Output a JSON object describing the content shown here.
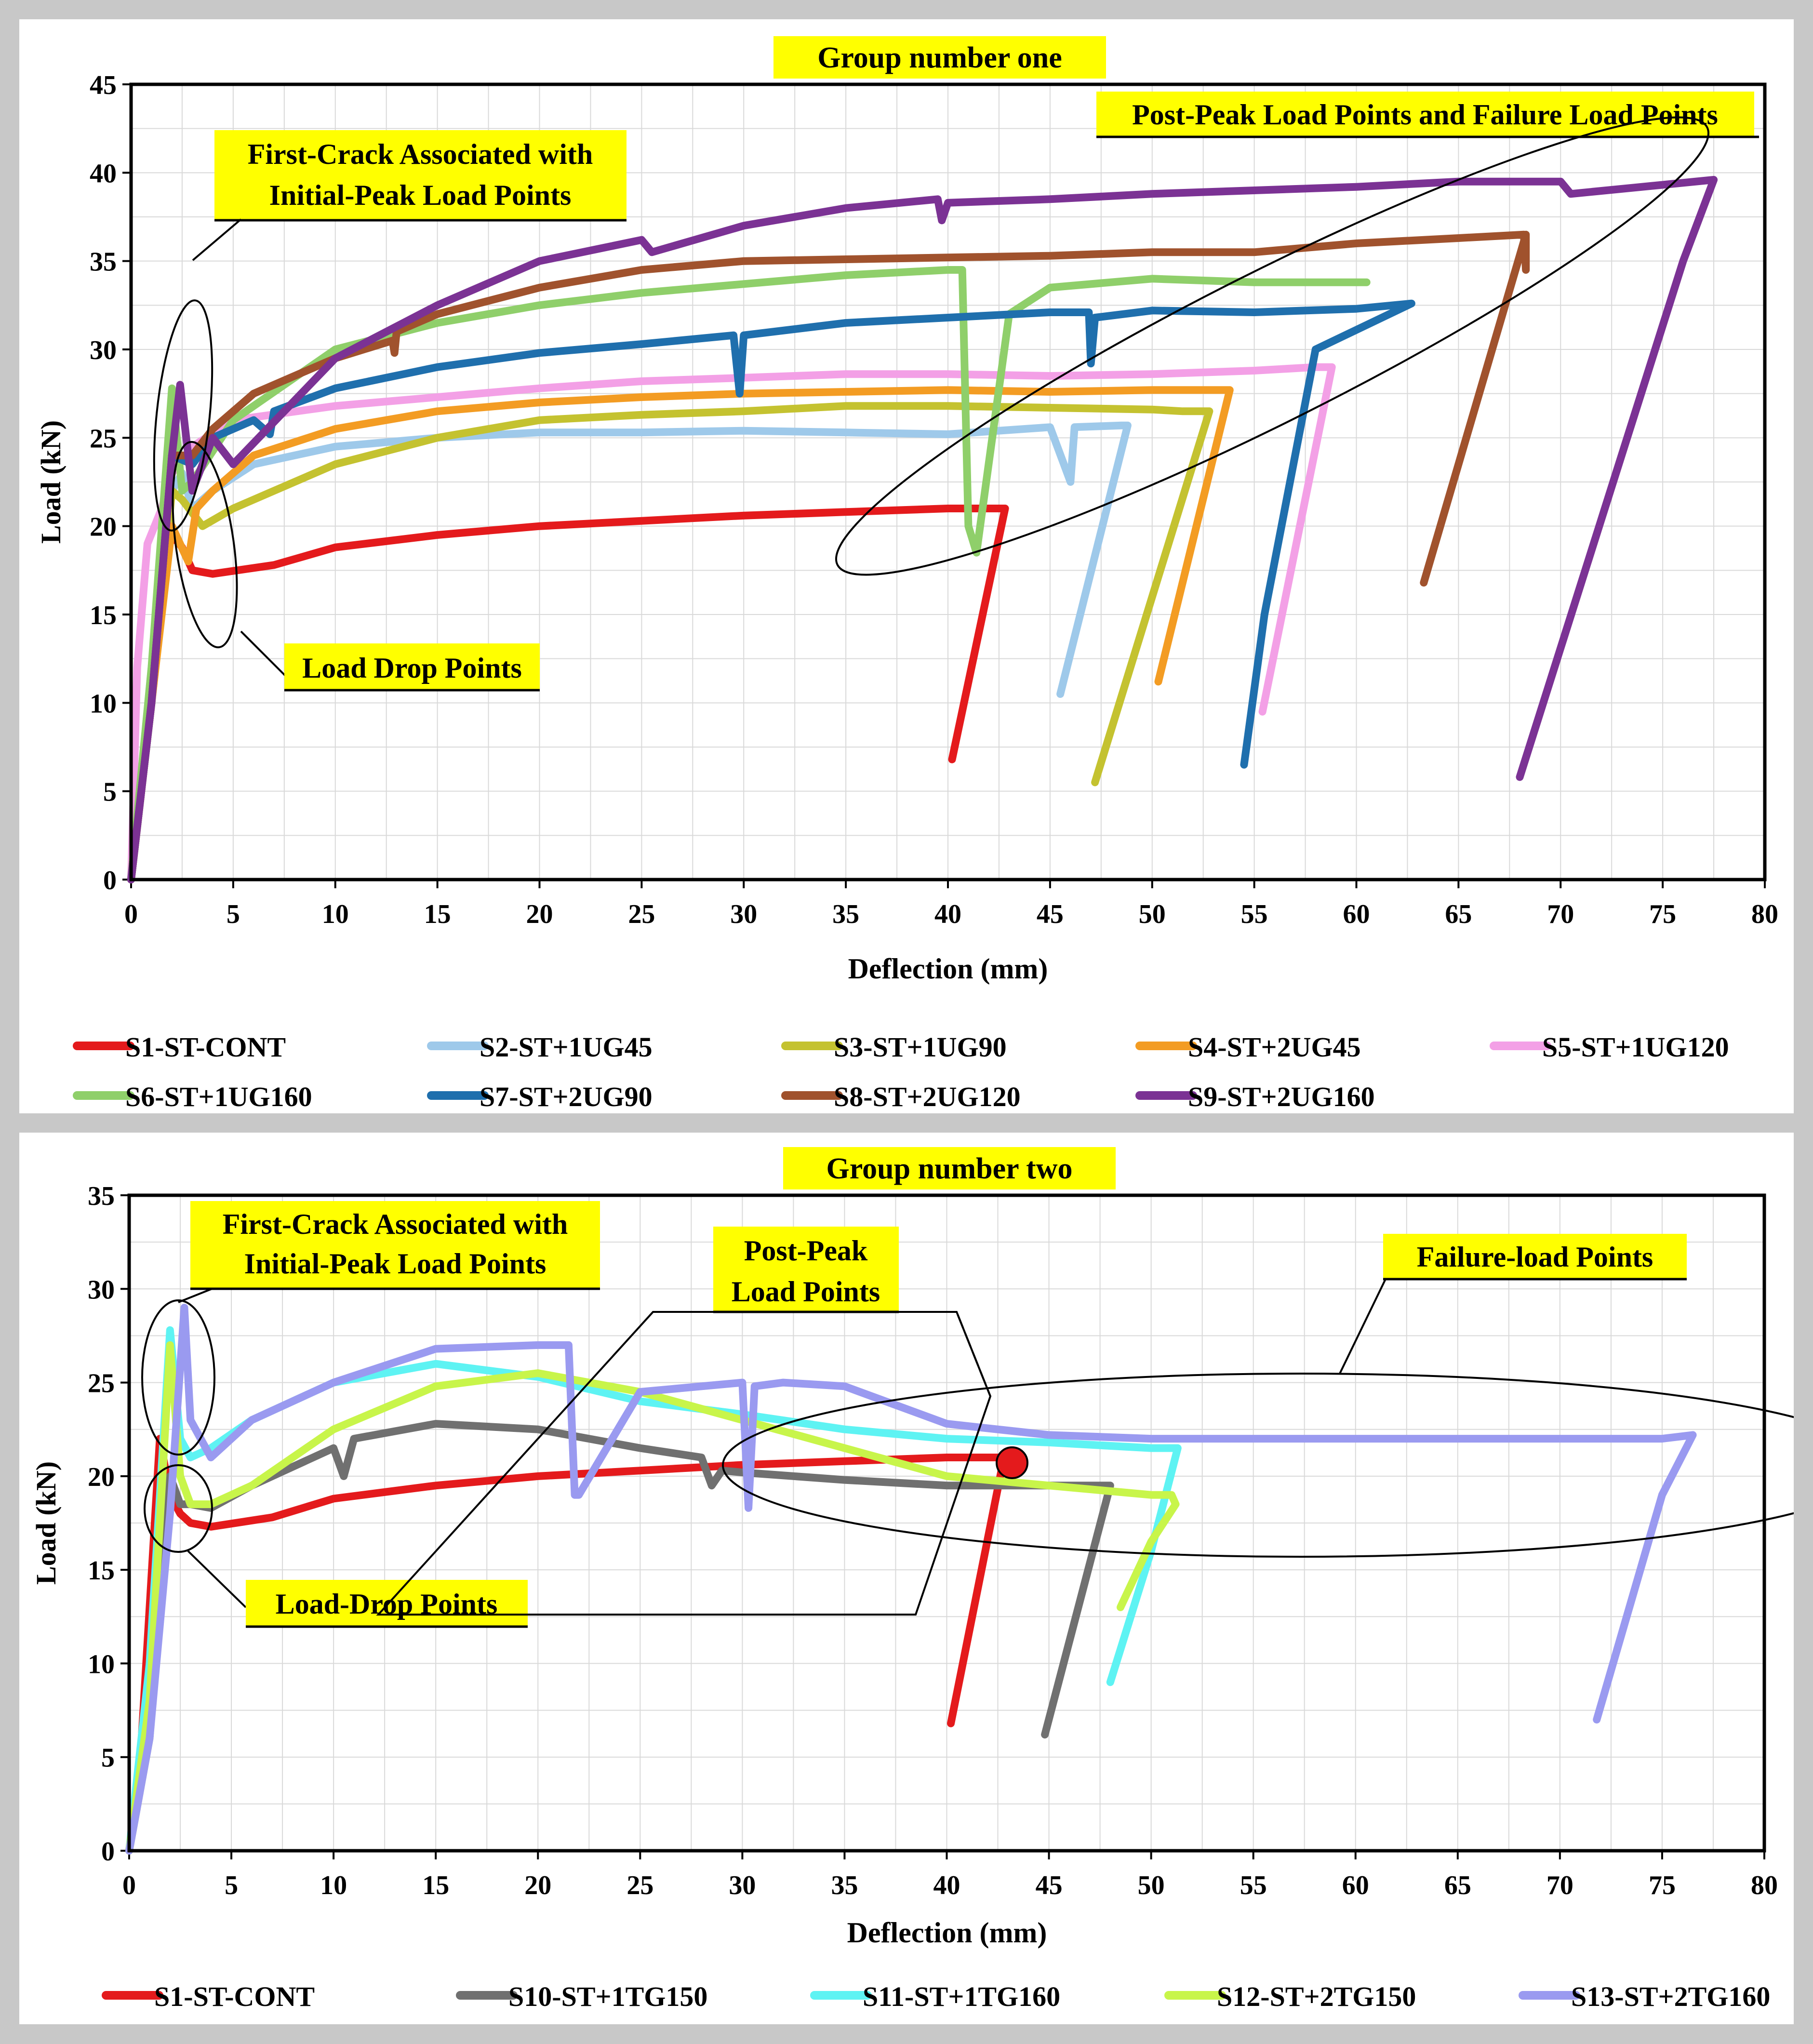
{
  "colors": {
    "S1": "#e41a1c",
    "S2": "#9ec9ea",
    "S3": "#c4c230",
    "S4": "#f39c23",
    "S5": "#f3a0e6",
    "S6": "#8fcf6a",
    "S7": "#1f6fad",
    "S8": "#a0522d",
    "S9": "#7b3294",
    "S10": "#707070",
    "S11": "#5ef3f3",
    "S12": "#c8f54a",
    "S13": "#9a9af0",
    "highlight": "#ffff00"
  },
  "chart_data": [
    {
      "type": "line",
      "title": "Group number one",
      "xlabel": "Deflection (mm)",
      "ylabel": "Load (kN)",
      "xlim": [
        0,
        80
      ],
      "ylim": [
        0,
        45
      ],
      "xticks": [
        "0",
        "5",
        "10",
        "15",
        "20",
        "25",
        "30",
        "35",
        "40",
        "45",
        "50",
        "55",
        "60",
        "65",
        "70",
        "75",
        "80"
      ],
      "yticks": [
        "0",
        "5",
        "10",
        "15",
        "20",
        "25",
        "30",
        "35",
        "40",
        "45"
      ],
      "grid": true,
      "legend_position": "bottom",
      "annotations": {
        "first_crack": [
          "First-Crack Associated with",
          "Initial-Peak Load Points"
        ],
        "post_peak_failure": "Post-Peak Load Points and Failure Load Points",
        "load_drop": "Load Drop Points"
      },
      "series": [
        {
          "name": "S1-ST-CONT",
          "color_key": "S1",
          "x": [
            0,
            1,
            1.5,
            2.0,
            2.5,
            3,
            4,
            7,
            10,
            15,
            20,
            25,
            30,
            35,
            40,
            42.6,
            42.8,
            40.2
          ],
          "y": [
            0,
            10,
            17,
            19.5,
            18.8,
            17.5,
            17.3,
            17.8,
            18.8,
            19.5,
            20,
            20.3,
            20.6,
            20.8,
            21,
            21,
            21,
            6.8
          ]
        },
        {
          "name": "S2-ST+1UG45",
          "color_key": "S2",
          "x": [
            0,
            1,
            2,
            2.5,
            3,
            4,
            6,
            10,
            15,
            20,
            25,
            30,
            35,
            40,
            45,
            46,
            46.2,
            48.5,
            48.8,
            45.5
          ],
          "y": [
            0,
            12,
            22,
            23,
            21,
            22,
            23.5,
            24.5,
            25,
            25.3,
            25.3,
            25.4,
            25.3,
            25.2,
            25.6,
            22.5,
            25.6,
            25.7,
            25.7,
            10.5
          ]
        },
        {
          "name": "S3-ST+1UG90",
          "color_key": "S3",
          "x": [
            0,
            1,
            2,
            2.5,
            3.5,
            5,
            7,
            10,
            15,
            20,
            25,
            30,
            35,
            40,
            45,
            50,
            51.5,
            52.5,
            52.8,
            47.2
          ],
          "y": [
            0,
            10,
            22,
            21.5,
            20,
            21,
            22,
            23.5,
            25,
            26,
            26.3,
            26.5,
            26.8,
            26.8,
            26.7,
            26.6,
            26.5,
            26.5,
            26.5,
            5.5
          ]
        },
        {
          "name": "S4-ST+2UG45",
          "color_key": "S4",
          "x": [
            0,
            1,
            2,
            2.8,
            3.2,
            4,
            6,
            10,
            15,
            20,
            25,
            30,
            35,
            40,
            45,
            50,
            53.5,
            53.8,
            50.3
          ],
          "y": [
            0,
            10,
            20,
            18,
            21,
            22,
            24,
            25.5,
            26.5,
            27,
            27.3,
            27.5,
            27.6,
            27.7,
            27.6,
            27.7,
            27.7,
            27.7,
            11.2
          ]
        },
        {
          "name": "S5-ST+1UG120",
          "color_key": "S5",
          "x": [
            0,
            0.3,
            0.8,
            1.5,
            2,
            3,
            5,
            10,
            15,
            20,
            25,
            30,
            35,
            40,
            45,
            50,
            55,
            58,
            58.8,
            55.4
          ],
          "y": [
            0,
            12,
            19,
            21,
            23,
            24.5,
            26,
            26.8,
            27.3,
            27.8,
            28.2,
            28.4,
            28.6,
            28.6,
            28.5,
            28.6,
            28.8,
            29,
            29,
            9.5
          ]
        },
        {
          "name": "S6-ST+1UG160",
          "color_key": "S6",
          "x": [
            0,
            1,
            2,
            2.5,
            3,
            5,
            10,
            15,
            20,
            25,
            30,
            35,
            40,
            40.7,
            41,
            41.4,
            43,
            45,
            50,
            55,
            58,
            60.5,
            57.3
          ],
          "y": [
            0,
            12,
            27.8,
            22,
            22.5,
            26,
            30,
            31.5,
            32.5,
            33.2,
            33.7,
            34.2,
            34.5,
            34.5,
            20,
            18.5,
            32,
            33.5,
            34,
            33.8,
            33.8,
            33.8,
            33.8
          ]
        },
        {
          "name": "S7-ST+2UG90",
          "color_key": "S7",
          "x": [
            0,
            1,
            2,
            3,
            4,
            6,
            6.8,
            7,
            10,
            15,
            20,
            25,
            29.5,
            29.8,
            30,
            35,
            40,
            45,
            46.9,
            47.0,
            47.2,
            50,
            55,
            60,
            62.7,
            58,
            55.5,
            54.5
          ],
          "y": [
            0,
            10,
            24,
            23.5,
            25,
            26,
            25.2,
            26.5,
            27.8,
            29,
            29.8,
            30.3,
            30.8,
            27.5,
            30.8,
            31.5,
            31.8,
            32.1,
            32.1,
            29.2,
            31.8,
            32.2,
            32.1,
            32.3,
            32.6,
            30,
            15,
            6.5
          ]
        },
        {
          "name": "S8-ST+2UG120",
          "color_key": "S8",
          "x": [
            0,
            1,
            2,
            3,
            4,
            6,
            10,
            12.8,
            12.9,
            13,
            15,
            20,
            25,
            30,
            35,
            40,
            45,
            50,
            55,
            60,
            65,
            68.2,
            68.3,
            68.3,
            63.3
          ],
          "y": [
            0,
            10,
            24,
            24,
            25.5,
            27.5,
            29.5,
            30.5,
            29.8,
            31,
            32,
            33.5,
            34.5,
            35,
            35.1,
            35.2,
            35.3,
            35.5,
            35.5,
            36,
            36.3,
            36.5,
            34.5,
            36.5,
            16.8
          ]
        },
        {
          "name": "S9-ST+2UG160",
          "color_key": "S9",
          "x": [
            0,
            1,
            2,
            2.4,
            3,
            4,
            5,
            10,
            15,
            20,
            25,
            25.5,
            30,
            35,
            39.5,
            39.7,
            40,
            45,
            50,
            55,
            60,
            65,
            70,
            70.5,
            77.5,
            76,
            68
          ],
          "y": [
            0,
            10,
            24,
            28,
            22,
            25,
            23.5,
            29.5,
            32.5,
            35,
            36.2,
            35.5,
            37,
            38,
            38.5,
            37.3,
            38.3,
            38.5,
            38.8,
            39,
            39.2,
            39.5,
            39.5,
            38.8,
            39.6,
            35,
            5.8
          ]
        }
      ]
    },
    {
      "type": "line",
      "title": "Group number two",
      "xlabel": "Deflection (mm)",
      "ylabel": "Load (kN)",
      "xlim": [
        0,
        80
      ],
      "ylim": [
        0,
        35
      ],
      "xticks": [
        "0",
        "5",
        "10",
        "15",
        "20",
        "25",
        "30",
        "35",
        "40",
        "45",
        "50",
        "55",
        "60",
        "65",
        "70",
        "75",
        "80"
      ],
      "yticks": [
        "0",
        "5",
        "10",
        "15",
        "20",
        "25",
        "30",
        "35"
      ],
      "grid": true,
      "legend_position": "bottom",
      "annotations": {
        "first_crack": [
          "First-Crack Associated with",
          "Initial-Peak Load Points"
        ],
        "post_peak": [
          "Post-Peak",
          "Load Points"
        ],
        "failure_load": "Failure-load Points",
        "load_drop": "Load-Drop Points"
      },
      "series": [
        {
          "name": "S1-ST-CONT",
          "color_key": "S1",
          "x": [
            0,
            0.5,
            1.5,
            2,
            2.5,
            3,
            4,
            7,
            10,
            15,
            20,
            25,
            30,
            35,
            40,
            42.4,
            42.8,
            40.2
          ],
          "y": [
            0,
            4,
            22,
            19,
            18,
            17.5,
            17.3,
            17.8,
            18.8,
            19.5,
            20,
            20.3,
            20.6,
            20.8,
            21,
            21,
            21,
            6.8
          ]
        },
        {
          "name": "S10-ST+1TG150",
          "color_key": "S10",
          "x": [
            0,
            1,
            2,
            2.5,
            3,
            4,
            6,
            10,
            10.5,
            11,
            15,
            20,
            25,
            28,
            28.5,
            29,
            30,
            35,
            40,
            45,
            47.5,
            48,
            44.8
          ],
          "y": [
            0,
            6,
            20,
            18.5,
            18.5,
            18.3,
            19.5,
            21.5,
            20,
            22,
            22.8,
            22.5,
            21.5,
            21,
            19.5,
            20.3,
            20.2,
            19.8,
            19.5,
            19.5,
            19.5,
            19.5,
            6.2
          ]
        },
        {
          "name": "S11-ST+1TG160",
          "color_key": "S11",
          "x": [
            0,
            1,
            2,
            2.5,
            3,
            4,
            6,
            10,
            15,
            20,
            25,
            30,
            35,
            40,
            45,
            50,
            51.3,
            50,
            48
          ],
          "y": [
            0,
            10,
            27.8,
            22,
            21,
            21.5,
            23,
            25,
            26,
            25.3,
            24,
            23.3,
            22.5,
            22,
            21.8,
            21.5,
            21.5,
            16,
            9
          ]
        },
        {
          "name": "S12-ST+2TG150",
          "color_key": "S12",
          "x": [
            0,
            1,
            2,
            2.5,
            3,
            4,
            6,
            10,
            15,
            20,
            25,
            30,
            35,
            40,
            45,
            50,
            51,
            51.2,
            50,
            48.5
          ],
          "y": [
            0,
            8,
            27,
            20,
            18.5,
            18.5,
            19.5,
            22.5,
            24.8,
            25.5,
            24.5,
            23,
            21.5,
            20,
            19.5,
            19,
            19,
            18.5,
            16.5,
            13
          ]
        },
        {
          "name": "S13-ST+2TG160",
          "color_key": "S13",
          "x": [
            0,
            1,
            2,
            2.7,
            3,
            4,
            6,
            10,
            15,
            20,
            21.5,
            21.8,
            22,
            25,
            30,
            30.3,
            30.6,
            32,
            35,
            40,
            45,
            50,
            55,
            60,
            65,
            70,
            75,
            76.5,
            75,
            71.8
          ],
          "y": [
            0,
            6,
            18,
            29,
            23,
            21,
            23,
            25,
            26.8,
            27,
            27,
            19,
            19,
            24.5,
            25,
            18.3,
            24.8,
            25,
            24.8,
            22.8,
            22.2,
            22,
            22,
            22,
            22,
            22,
            22,
            22.2,
            19,
            7
          ]
        }
      ],
      "legend_order": [
        0,
        1,
        2,
        3,
        4
      ]
    }
  ]
}
